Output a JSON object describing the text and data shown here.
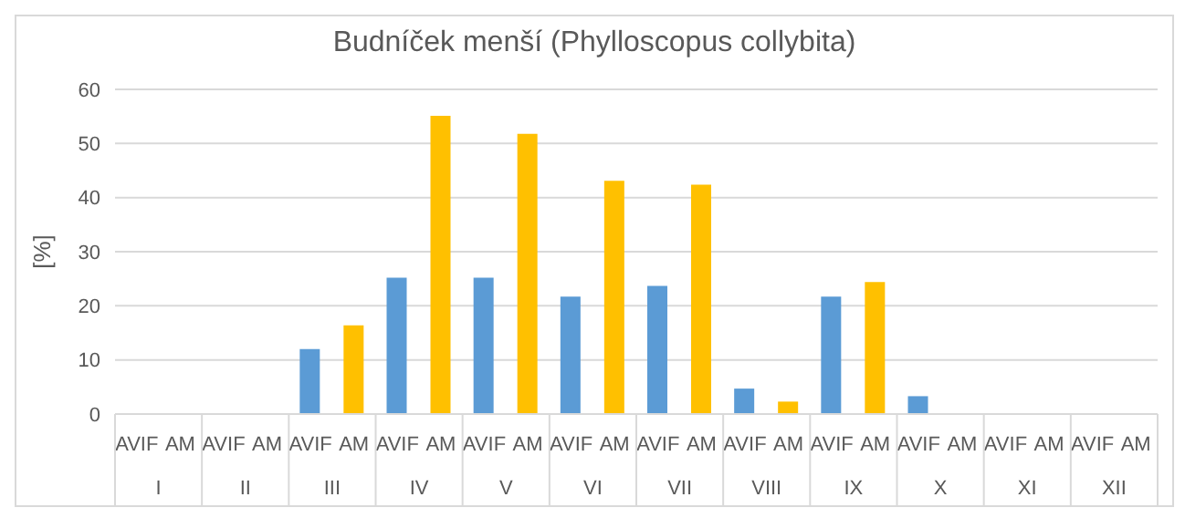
{
  "chart_data": {
    "type": "bar",
    "title": "Budníček menší (Phylloscopus collybita)",
    "ylabel": "[%]",
    "categories": [
      "I",
      "II",
      "III",
      "IV",
      "V",
      "VI",
      "VII",
      "VIII",
      "IX",
      "X",
      "XI",
      "XII"
    ],
    "series": [
      {
        "name": "AVIF",
        "color": "#5b9bd5",
        "values": [
          0,
          0,
          12,
          25.2,
          25.2,
          21.7,
          23.7,
          4.7,
          21.7,
          3.3,
          0,
          0
        ]
      },
      {
        "name": "AM",
        "color": "#ffc000",
        "values": [
          0,
          0,
          16.4,
          55.1,
          51.8,
          43.1,
          42.4,
          2.3,
          24.4,
          0,
          0,
          0
        ]
      }
    ],
    "ylim": [
      0,
      60
    ],
    "yticks": [
      0,
      10,
      20,
      30,
      40,
      50,
      60
    ],
    "grid": "y",
    "legend": false
  }
}
